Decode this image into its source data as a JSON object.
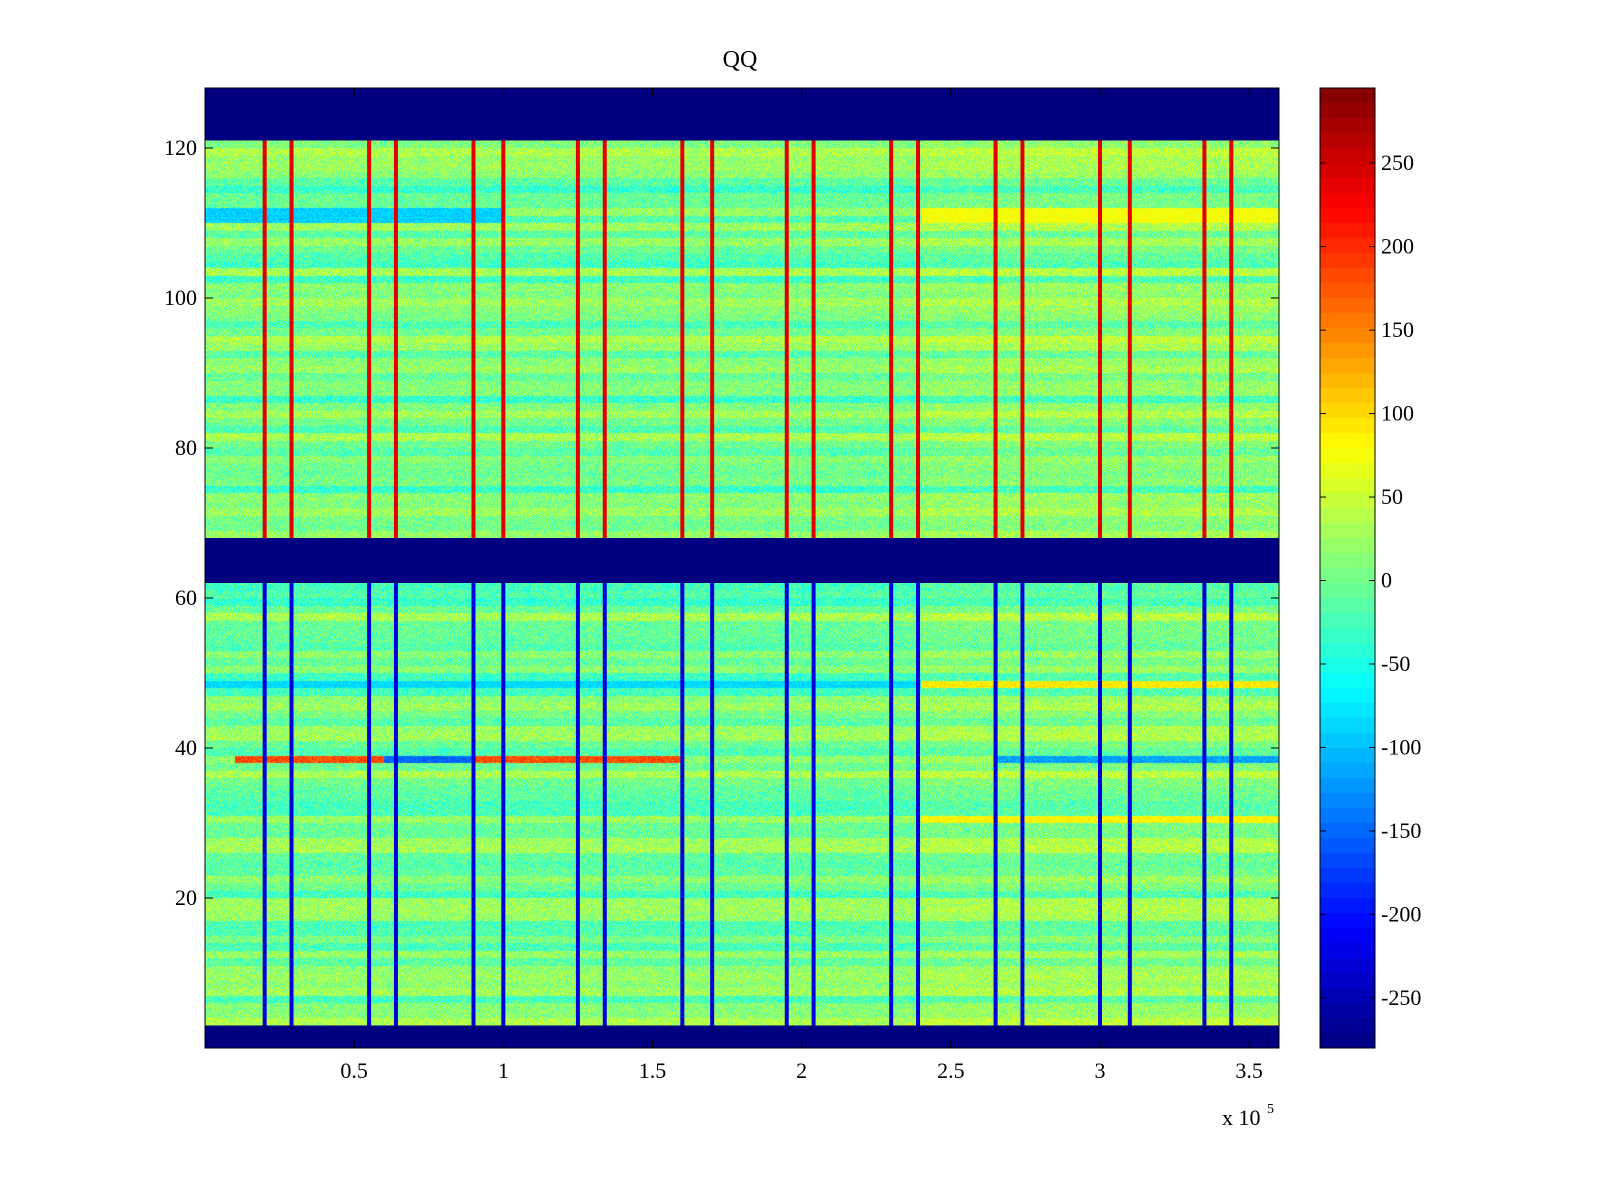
{
  "chart_data": {
    "type": "heatmap",
    "title": "QQ",
    "xlabel": "",
    "ylabel": "",
    "x_range": [
      0,
      360000
    ],
    "y_range": [
      0,
      128
    ],
    "x_exponent_label": "x 10",
    "x_exponent": "5",
    "x_ticks": [
      {
        "value": 0.5,
        "label": "0.5"
      },
      {
        "value": 1,
        "label": "1"
      },
      {
        "value": 1.5,
        "label": "1.5"
      },
      {
        "value": 2,
        "label": "2"
      },
      {
        "value": 2.5,
        "label": "2.5"
      },
      {
        "value": 3,
        "label": "3"
      },
      {
        "value": 3.5,
        "label": "3.5"
      }
    ],
    "y_ticks": [
      {
        "value": 20,
        "label": "20"
      },
      {
        "value": 40,
        "label": "40"
      },
      {
        "value": 60,
        "label": "60"
      },
      {
        "value": 80,
        "label": "80"
      },
      {
        "value": 100,
        "label": "100"
      },
      {
        "value": 120,
        "label": "120"
      }
    ],
    "colorbar": {
      "colormap": "jet",
      "range": [
        -280,
        295
      ],
      "ticks": [
        {
          "value": 250,
          "label": "250"
        },
        {
          "value": 200,
          "label": "200"
        },
        {
          "value": 150,
          "label": "150"
        },
        {
          "value": 100,
          "label": "100"
        },
        {
          "value": 50,
          "label": "50"
        },
        {
          "value": 0,
          "label": "0"
        },
        {
          "value": -50,
          "label": "-50"
        },
        {
          "value": -100,
          "label": "-100"
        },
        {
          "value": -150,
          "label": "-150"
        },
        {
          "value": -200,
          "label": "-200"
        },
        {
          "value": -250,
          "label": "-250"
        }
      ]
    },
    "masked_row_bands": [
      {
        "y_from": 121,
        "y_to": 128,
        "value": -280
      },
      {
        "y_from": 62,
        "y_to": 68,
        "value": -280
      },
      {
        "y_from": 0,
        "y_to": 3,
        "value": -280
      }
    ],
    "vertical_stripes_x": [
      20000,
      29000,
      55000,
      64000,
      90000,
      100000,
      125000,
      134000,
      160000,
      170000,
      195000,
      204000,
      230000,
      239000,
      265000,
      274000,
      300000,
      310000,
      335000,
      344000
    ],
    "vertical_stripe_values": {
      "upper_band": 240,
      "lower_band": -230
    },
    "notable_rows": [
      {
        "y": 38,
        "description": "strong positive from 0.1e5 to 1.6e5, negative from 0.6e5 to 0.9e5 and 2.6e5 to 3.6e5"
      },
      {
        "y": 48,
        "description": "negative left, positive right of 2.4e5"
      },
      {
        "y": 110,
        "description": "negative left, positive right of 2.4e5"
      },
      {
        "y": 30,
        "description": "positive right of 2.4e5"
      }
    ],
    "background_value_range": [
      -60,
      60
    ]
  }
}
